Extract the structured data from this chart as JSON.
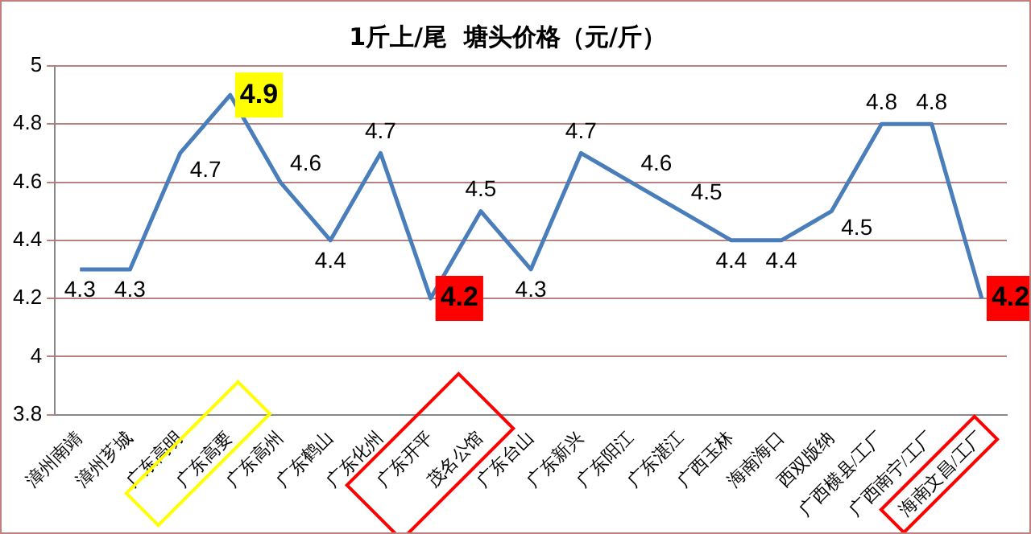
{
  "chart_data": {
    "type": "line",
    "title": "1斤上/尾  塘头价格（元/斤）",
    "categories": [
      "漳州南靖",
      "漳州芗城",
      "广东高明",
      "广东高要",
      "广东高州",
      "广东鹤山",
      "广东化州",
      "广东开平",
      "茂名公馆",
      "广东台山",
      "广东新兴",
      "广东阳江",
      "广东湛江",
      "广西玉林",
      "海南海口",
      "西双版纳",
      "广西横县/工厂",
      "广西南宁/工厂",
      "海南文昌/工厂"
    ],
    "series": [
      {
        "color": "#4a7ebb",
        "values": [
          4.3,
          4.3,
          4.7,
          4.9,
          4.6,
          4.4,
          4.7,
          4.2,
          4.5,
          4.3,
          4.7,
          4.6,
          4.5,
          4.4,
          4.4,
          4.5,
          4.8,
          4.8,
          4.2
        ]
      }
    ],
    "ylim": [
      3.8,
      5
    ],
    "yticks": [
      3.8,
      4,
      4.2,
      4.4,
      4.6,
      4.8,
      5
    ],
    "grid": "y",
    "legend": false,
    "marker": "none",
    "line_style": "solid",
    "data_labels": true
  }
}
